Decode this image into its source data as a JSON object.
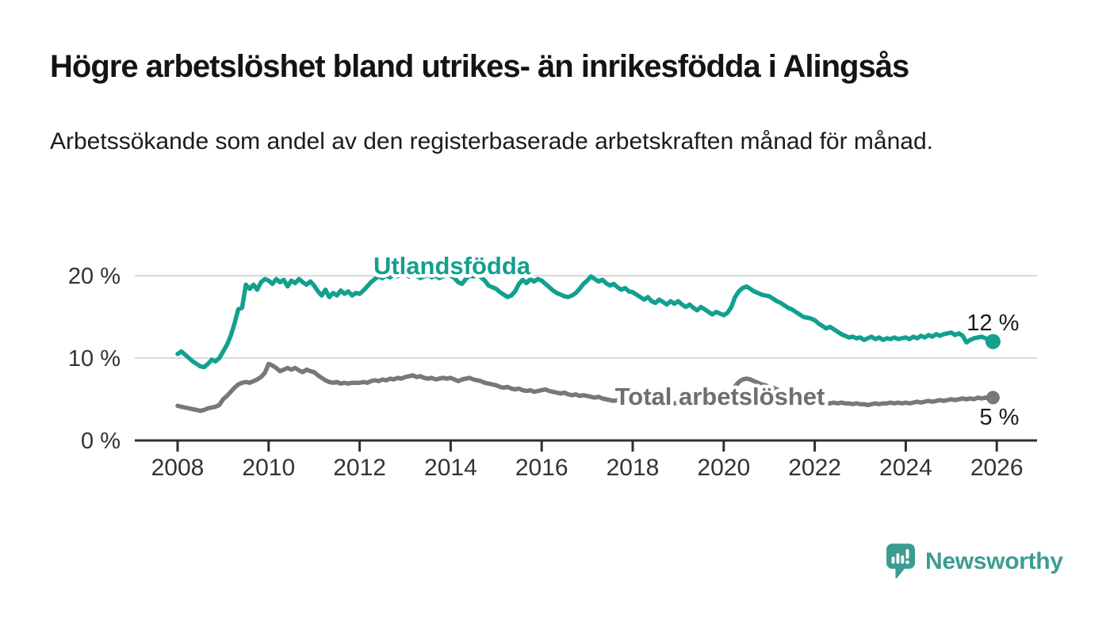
{
  "header": {
    "title": "Högre arbetslöshet bland utrikes- än inrikesfödda i Alingsås",
    "subtitle": "Arbetssökande som andel av den registerbaserade arbetskraften månad för månad."
  },
  "branding": {
    "name": "Newsworthy",
    "logo_icon": "speech-bubble-bar-chart-icon",
    "color": "#3d9c92"
  },
  "chart_data": {
    "type": "line",
    "title": "Högre arbetslöshet bland utrikes- än inrikesfödda i Alingsås",
    "subtitle": "Arbetssökande som andel av den registerbaserade arbetskraften månad för månad.",
    "unit": "%",
    "x_start_year": 2008,
    "x_step_months": 1,
    "x_ticks": [
      2008,
      2010,
      2012,
      2014,
      2016,
      2018,
      2020,
      2022,
      2024,
      2026
    ],
    "y_ticks": [
      0,
      10,
      20
    ],
    "y_tick_suffix": " %",
    "ylim": [
      0,
      21.5
    ],
    "xlim": [
      2007.05,
      2026.9
    ],
    "grid": "horizontal",
    "legend_position": "inline-labels",
    "colors": {
      "axis": "#2f2f2f",
      "gridline": "#dadada",
      "tick_label": "#333333",
      "end_label": "#1a1a1a"
    },
    "series": [
      {
        "name": "Utlandsfödda",
        "color": "#12a08f",
        "end_label": "12 %",
        "end_value": 12,
        "values": [
          10.5,
          10.8,
          10.4,
          10.0,
          9.6,
          9.3,
          9.0,
          8.9,
          9.3,
          9.8,
          9.6,
          10.0,
          10.8,
          11.6,
          12.7,
          14.2,
          15.9,
          16.1,
          18.9,
          18.4,
          18.9,
          18.3,
          19.2,
          19.6,
          19.4,
          19.0,
          19.6,
          19.2,
          19.5,
          18.7,
          19.4,
          19.1,
          19.6,
          19.2,
          18.9,
          19.3,
          18.8,
          18.1,
          17.6,
          18.3,
          17.4,
          17.9,
          17.6,
          18.2,
          17.8,
          18.1,
          17.6,
          17.9,
          17.8,
          18.2,
          18.7,
          19.2,
          19.6,
          19.9,
          19.7,
          20.0,
          19.8,
          20.1,
          19.9,
          20.1,
          20.2,
          19.9,
          20.3,
          20.0,
          19.7,
          19.9,
          20.1,
          19.8,
          20.0,
          19.7,
          19.9,
          20.1,
          20.0,
          19.7,
          19.2,
          19.0,
          19.6,
          20.0,
          19.9,
          20.1,
          19.8,
          19.4,
          18.8,
          18.6,
          18.4,
          18.0,
          17.7,
          17.4,
          17.6,
          18.1,
          19.0,
          19.5,
          19.1,
          19.6,
          19.3,
          19.6,
          19.4,
          19.0,
          18.6,
          18.2,
          17.9,
          17.7,
          17.5,
          17.4,
          17.6,
          17.9,
          18.4,
          19.0,
          19.4,
          19.9,
          19.6,
          19.3,
          19.5,
          19.1,
          18.8,
          19.0,
          18.6,
          18.3,
          18.5,
          18.1,
          18.0,
          17.7,
          17.4,
          17.1,
          17.4,
          16.9,
          16.7,
          17.1,
          16.8,
          16.5,
          16.9,
          16.6,
          16.9,
          16.5,
          16.2,
          16.5,
          16.1,
          15.8,
          16.2,
          15.9,
          15.6,
          15.3,
          15.6,
          15.4,
          15.2,
          15.5,
          16.2,
          17.4,
          18.1,
          18.5,
          18.7,
          18.4,
          18.1,
          17.9,
          17.7,
          17.6,
          17.5,
          17.2,
          16.9,
          16.7,
          16.4,
          16.1,
          15.9,
          15.6,
          15.3,
          15.0,
          14.9,
          14.8,
          14.6,
          14.2,
          13.9,
          13.6,
          13.8,
          13.5,
          13.2,
          12.9,
          12.7,
          12.5,
          12.6,
          12.4,
          12.5,
          12.2,
          12.4,
          12.6,
          12.3,
          12.5,
          12.2,
          12.4,
          12.3,
          12.5,
          12.3,
          12.4,
          12.5,
          12.3,
          12.6,
          12.4,
          12.7,
          12.5,
          12.8,
          12.6,
          12.9,
          12.7,
          12.9,
          13.0,
          13.1,
          12.8,
          13.0,
          12.7,
          11.9,
          12.2,
          12.4,
          12.5,
          12.6,
          12.4,
          12.2,
          12.0
        ]
      },
      {
        "name": "Total arbetslöshet",
        "color": "#787878",
        "end_label": "5 %",
        "end_value": 5,
        "values": [
          4.2,
          4.1,
          4.0,
          3.9,
          3.8,
          3.7,
          3.6,
          3.7,
          3.9,
          4.0,
          4.1,
          4.3,
          5.0,
          5.4,
          5.9,
          6.4,
          6.8,
          7.0,
          7.1,
          7.0,
          7.2,
          7.4,
          7.7,
          8.2,
          9.3,
          9.1,
          8.8,
          8.4,
          8.6,
          8.8,
          8.6,
          8.8,
          8.5,
          8.3,
          8.6,
          8.4,
          8.3,
          7.9,
          7.6,
          7.3,
          7.1,
          7.0,
          7.1,
          6.9,
          7.0,
          6.9,
          7.0,
          7.0,
          7.0,
          7.1,
          7.0,
          7.2,
          7.3,
          7.2,
          7.4,
          7.3,
          7.5,
          7.4,
          7.6,
          7.5,
          7.7,
          7.8,
          7.9,
          7.7,
          7.8,
          7.6,
          7.5,
          7.6,
          7.4,
          7.5,
          7.6,
          7.5,
          7.6,
          7.4,
          7.2,
          7.4,
          7.5,
          7.6,
          7.4,
          7.3,
          7.2,
          7.0,
          6.9,
          6.8,
          6.7,
          6.5,
          6.4,
          6.5,
          6.3,
          6.2,
          6.3,
          6.1,
          6.0,
          6.1,
          5.9,
          6.0,
          6.1,
          6.2,
          6.0,
          5.9,
          5.8,
          5.7,
          5.8,
          5.6,
          5.5,
          5.6,
          5.4,
          5.5,
          5.4,
          5.3,
          5.2,
          5.3,
          5.1,
          5.0,
          4.9,
          4.8,
          4.9,
          4.7,
          4.8,
          4.7,
          4.8,
          4.9,
          4.7,
          4.6,
          4.7,
          4.6,
          4.5,
          4.6,
          4.5,
          4.4,
          4.5,
          4.5,
          4.6,
          4.5,
          4.4,
          4.5,
          4.4,
          4.5,
          4.6,
          4.5,
          4.6,
          4.7,
          4.8,
          4.9,
          5.0,
          5.2,
          5.8,
          6.6,
          7.1,
          7.4,
          7.5,
          7.4,
          7.2,
          7.0,
          6.8,
          6.7,
          6.5,
          6.4,
          6.2,
          6.0,
          5.8,
          5.6,
          5.4,
          5.2,
          5.1,
          5.0,
          4.9,
          4.8,
          4.7,
          4.6,
          4.6,
          4.5,
          4.5,
          4.6,
          4.5,
          4.6,
          4.5,
          4.5,
          4.4,
          4.5,
          4.4,
          4.4,
          4.3,
          4.4,
          4.5,
          4.4,
          4.5,
          4.5,
          4.6,
          4.5,
          4.6,
          4.5,
          4.6,
          4.5,
          4.6,
          4.7,
          4.6,
          4.7,
          4.8,
          4.7,
          4.8,
          4.9,
          4.8,
          4.9,
          5.0,
          4.9,
          5.0,
          5.1,
          5.0,
          5.1,
          5.0,
          5.2,
          5.1,
          5.2,
          5.1,
          5.2
        ]
      }
    ]
  }
}
